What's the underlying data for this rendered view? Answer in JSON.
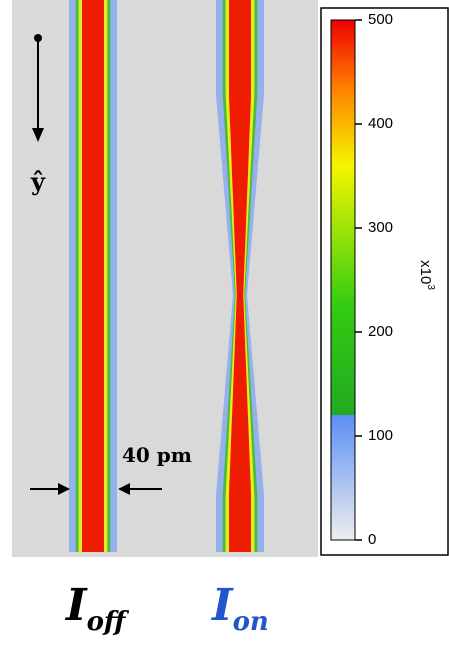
{
  "figure": {
    "scale_label": "x10",
    "scale_exponent": "3",
    "colorbar": {
      "lim": [
        0,
        500
      ],
      "ticks": [
        0,
        100,
        200,
        300,
        400,
        500
      ]
    },
    "annotations": {
      "axis": "ŷ",
      "width": "40 pm"
    },
    "labels": [
      {
        "main": "I",
        "sub": "off"
      },
      {
        "main": "I",
        "sub": "on"
      }
    ]
  }
}
